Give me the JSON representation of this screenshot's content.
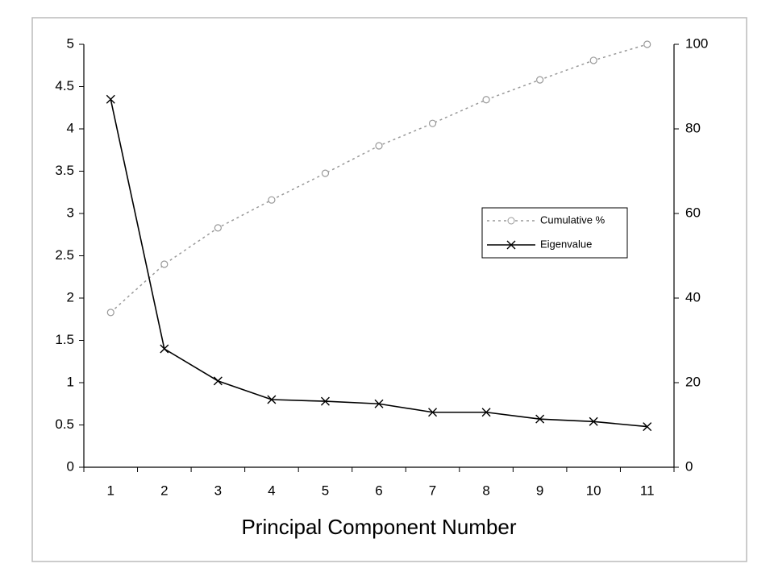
{
  "chart_data": {
    "type": "line",
    "x_label": "Principal Component Number",
    "categories": [
      "1",
      "2",
      "3",
      "4",
      "5",
      "6",
      "7",
      "8",
      "9",
      "10",
      "11"
    ],
    "series": [
      {
        "name": "Cumulative %",
        "color": "#999999",
        "axis": "y2",
        "marker": "circle",
        "line_style": "dotted",
        "values": [
          36.6,
          48,
          56.6,
          63.2,
          69.5,
          76,
          81.3,
          86.9,
          91.6,
          96.2,
          100
        ]
      },
      {
        "name": "Eigenvalue",
        "color": "#000000",
        "marker": "x",
        "line_style": "solid",
        "values": [
          4.35,
          1.4,
          1.02,
          0.8,
          0.78,
          0.75,
          0.65,
          0.65,
          0.57,
          0.54,
          0.48
        ]
      }
    ],
    "ylim": [
      0,
      5
    ],
    "yticks": [
      0,
      0.5,
      1,
      1.5,
      2,
      2.5,
      3,
      3.5,
      4,
      4.5,
      5
    ],
    "y2lim": [
      0,
      100
    ],
    "y2ticks": [
      0,
      20,
      40,
      60,
      80,
      100
    ],
    "grid": false
  }
}
